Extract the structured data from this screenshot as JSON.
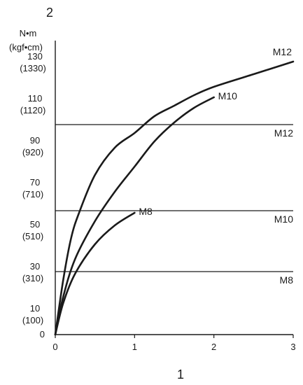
{
  "corner_labels": {
    "y_axis_number": "2",
    "x_axis_number": "1"
  },
  "chart_data": {
    "type": "line",
    "title": "",
    "xlabel": "",
    "ylabel": "N•m\n(kgf•cm)",
    "xlim": [
      0,
      3
    ],
    "ylim": [
      0,
      140
    ],
    "x_ticks": [
      0,
      1,
      2,
      3
    ],
    "x_tick_labels": [
      "0",
      "1",
      "2",
      "3"
    ],
    "y_ticks": [
      0,
      10,
      30,
      50,
      70,
      90,
      110,
      130
    ],
    "y_tick_labels": [
      [
        "0"
      ],
      [
        "10",
        "(100)"
      ],
      [
        "30",
        "(310)"
      ],
      [
        "50",
        "(510)"
      ],
      [
        "70",
        "(710)"
      ],
      [
        "90",
        "(920)"
      ],
      [
        "110",
        "(1120)"
      ],
      [
        "130",
        "(1330)"
      ]
    ],
    "grid": false,
    "series": [
      {
        "name": "M12",
        "x": [
          0,
          0.1,
          0.2,
          0.3,
          0.5,
          0.75,
          1.0,
          1.25,
          1.5,
          1.75,
          2.0,
          2.5,
          3.0
        ],
        "values": [
          0,
          26,
          46,
          58,
          76,
          89,
          96,
          104,
          109,
          114,
          118,
          124,
          130
        ]
      },
      {
        "name": "M10",
        "x": [
          0,
          0.1,
          0.25,
          0.5,
          0.75,
          1.0,
          1.25,
          1.5,
          1.75,
          2.0
        ],
        "values": [
          0,
          18,
          36,
          54,
          68,
          80,
          92,
          101,
          108,
          113
        ]
      },
      {
        "name": "M8",
        "x": [
          0,
          0.1,
          0.25,
          0.5,
          0.75,
          1.0
        ],
        "values": [
          0,
          15,
          29,
          43,
          52,
          58
        ]
      }
    ],
    "reference_lines": [
      {
        "name": "M12",
        "y": 100
      },
      {
        "name": "M10",
        "y": 59
      },
      {
        "name": "M8",
        "y": 30
      }
    ]
  }
}
